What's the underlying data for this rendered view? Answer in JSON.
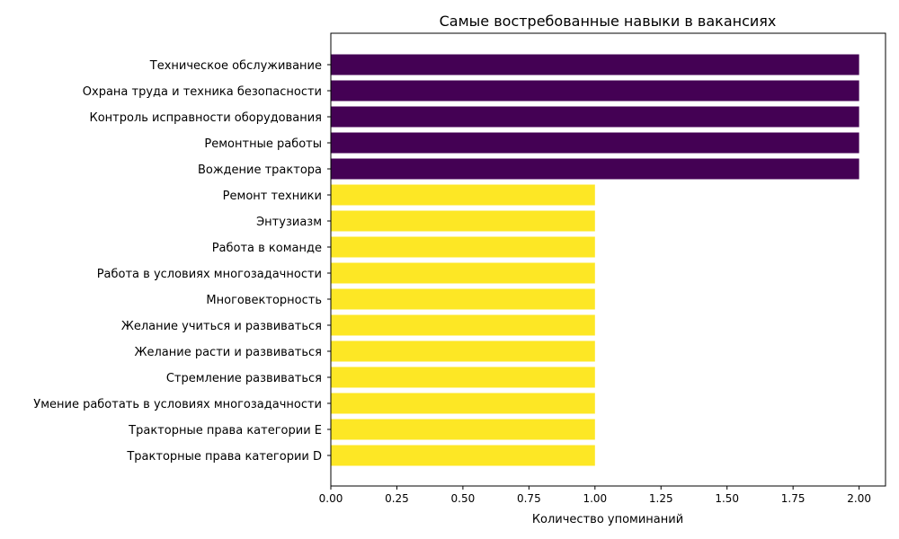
{
  "chart_data": {
    "type": "bar",
    "orientation": "horizontal",
    "title": "Самые востребованные навыки в вакансиях",
    "xlabel": "Количество упоминаний",
    "ylabel": "",
    "categories": [
      "Техническое обслуживание",
      "Охрана труда и техника безопасности",
      "Контроль исправности оборудования",
      "Ремонтные работы",
      "Вождение трактора",
      "Ремонт техники",
      "Энтузиазм",
      "Работа в команде",
      "Работа в условиях многозадачности",
      "Многовекторность",
      "Желание учиться и развиваться",
      "Желание расти и развиваться",
      "Стремление развиваться",
      "Умение работать в условиях многозадачности",
      "Тракторные права категории E",
      "Тракторные права категории D"
    ],
    "values": [
      2,
      2,
      2,
      2,
      2,
      1,
      1,
      1,
      1,
      1,
      1,
      1,
      1,
      1,
      1,
      1
    ],
    "xlim": [
      0,
      2.1
    ],
    "xticks": [
      "0.00",
      "0.25",
      "0.50",
      "0.75",
      "1.00",
      "1.25",
      "1.50",
      "1.75",
      "2.00"
    ],
    "grid": false,
    "legend": "none",
    "colors": {
      "high": "#440154",
      "low": "#fde725"
    }
  }
}
